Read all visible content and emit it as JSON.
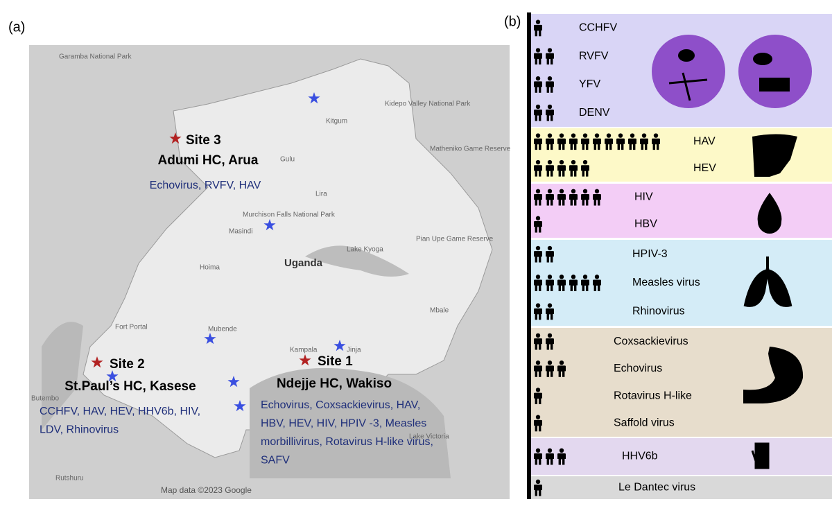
{
  "panel_a": {
    "label": "(a)",
    "places": [
      "Uganda",
      "Gulu",
      "Lira",
      "Kitgum",
      "Kampala",
      "Jinja",
      "Mbale",
      "Fort Portal",
      "Hoima",
      "Masindi",
      "Mubende",
      "Kidepo Valley National Park",
      "Murchison Falls National Park",
      "Garamba National Park",
      "Pian Upe Game Reserve",
      "Matheniko Game Reserve",
      "Lake Kyoga",
      "Lake Victoria",
      "Butembo",
      "Rutshuru"
    ],
    "sites": [
      {
        "name": "Site 3",
        "place": "Adumi HC, Arua",
        "viruses": [
          "Echovirus, RVFV, HAV"
        ]
      },
      {
        "name": "Site 2",
        "place": "St.Paul’s HC, Kasese",
        "viruses": [
          "CCHFV, HAV, HEV, HHV6b, HIV,",
          "LDV, Rhinovirus"
        ]
      },
      {
        "name": "Site 1",
        "place": "Ndejje HC, Wakiso",
        "viruses": [
          "Echovirus, Coxsackievirus, HAV,",
          "HBV, HEV, HIV, HPIV -3, Measles",
          "morbillivirus, Rotavirus H-like virus,",
          "SAFV"
        ]
      }
    ],
    "attribution": "Map data ©2023 Google"
  },
  "panel_b": {
    "label": "(b)",
    "groups": [
      {
        "color": "#d9d5f6",
        "items": [
          {
            "name": "CCHFV",
            "count": 1
          },
          {
            "name": "RVFV",
            "count": 2
          },
          {
            "name": "YFV",
            "count": 2
          },
          {
            "name": "DENV",
            "count": 2
          }
        ]
      },
      {
        "color": "#fdf9c8",
        "items": [
          {
            "name": "HAV",
            "count": 11
          },
          {
            "name": "HEV",
            "count": 5
          }
        ]
      },
      {
        "color": "#f3cdf6",
        "items": [
          {
            "name": "HIV",
            "count": 6
          },
          {
            "name": "HBV",
            "count": 1
          }
        ]
      },
      {
        "color": "#d4ecf7",
        "items": [
          {
            "name": "HPIV-3",
            "count": 2
          },
          {
            "name": "Measles virus",
            "count": 6
          },
          {
            "name": "Rhinovirus",
            "count": 2
          }
        ]
      },
      {
        "color": "#e7ddcc",
        "items": [
          {
            "name": "Coxsackievirus",
            "count": 2
          },
          {
            "name": "Echovirus",
            "count": 3
          },
          {
            "name": "Rotavirus H-like",
            "count": 1
          },
          {
            "name": "Saffold virus",
            "count": 1
          }
        ]
      },
      {
        "color": "#e3d8ef",
        "items": [
          {
            "name": "HHV6b",
            "count": 3
          }
        ]
      },
      {
        "color": "#d9d9d9",
        "items": [
          {
            "name": "Le Dantec virus",
            "count": 1
          }
        ]
      }
    ]
  }
}
